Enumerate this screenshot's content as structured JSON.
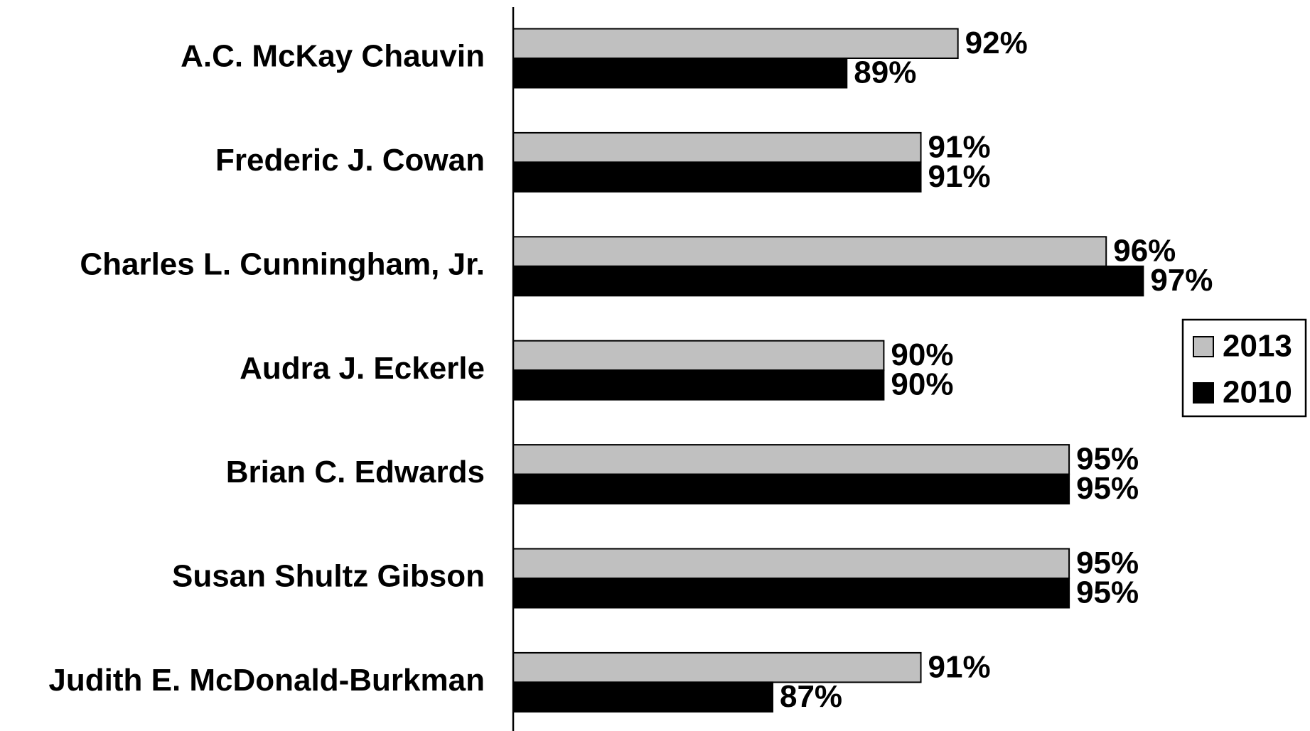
{
  "chart_data": {
    "type": "barh",
    "categories": [
      "A.C. McKay Chauvin",
      "Frederic J. Cowan",
      "Charles L. Cunningham, Jr.",
      "Audra J. Eckerle",
      "Brian C. Edwards",
      "Susan Shultz Gibson",
      "Judith E. McDonald-Burkman"
    ],
    "series": [
      {
        "name": "2013",
        "color": "#c0c0c0",
        "values": [
          92,
          91,
          96,
          90,
          95,
          95,
          91
        ],
        "value_labels": [
          "92%",
          "91%",
          "96%",
          "90%",
          "95%",
          "95%",
          "91%"
        ]
      },
      {
        "name": "2010",
        "color": "#000000",
        "values": [
          89,
          91,
          97,
          90,
          95,
          95,
          87
        ],
        "value_labels": [
          "89%",
          "91%",
          "97%",
          "90%",
          "95%",
          "95%",
          "87%"
        ]
      }
    ],
    "xlim": [
      80,
      101.5
    ],
    "legend": "right"
  }
}
